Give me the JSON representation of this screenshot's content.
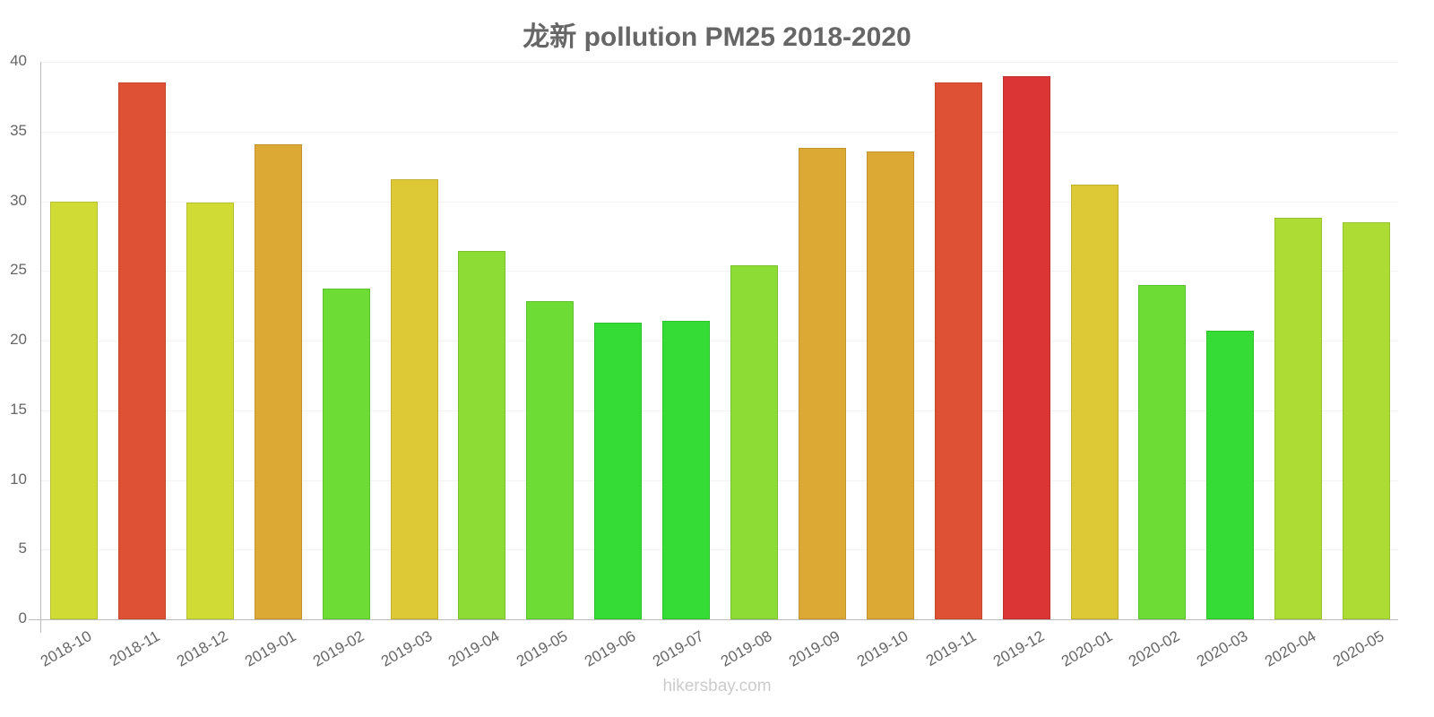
{
  "chart_data": {
    "type": "bar",
    "title": "龙新 pollution PM25 2018-2020",
    "xlabel": "",
    "ylabel": "",
    "ylim": [
      0,
      40
    ],
    "yticks": [
      0,
      5,
      10,
      15,
      20,
      25,
      30,
      35,
      40
    ],
    "grid": true,
    "legend": null,
    "categories": [
      "2018-10",
      "2018-11",
      "2018-12",
      "2019-01",
      "2019-02",
      "2019-03",
      "2019-04",
      "2019-05",
      "2019-06",
      "2019-07",
      "2019-08",
      "2019-09",
      "2019-10",
      "2019-11",
      "2019-12",
      "2020-01",
      "2020-02",
      "2020-03",
      "2020-04",
      "2020-05"
    ],
    "values": [
      30.0,
      38.5,
      29.9,
      34.1,
      23.7,
      31.6,
      26.4,
      22.8,
      21.3,
      21.4,
      25.4,
      33.8,
      33.6,
      38.5,
      39.0,
      31.2,
      24.0,
      20.7,
      28.8,
      28.5
    ],
    "colors": [
      "#d0dc35",
      "#de5134",
      "#d0dc35",
      "#dda935",
      "#6ddc35",
      "#dcc935",
      "#8ddc35",
      "#6ddc35",
      "#35dc35",
      "#35dc35",
      "#8ddc35",
      "#dda935",
      "#dda935",
      "#de5134",
      "#dc3535",
      "#dcc935",
      "#6ddc35",
      "#35dc35",
      "#addc35",
      "#addc35"
    ]
  },
  "credit": "hikersbay.com"
}
